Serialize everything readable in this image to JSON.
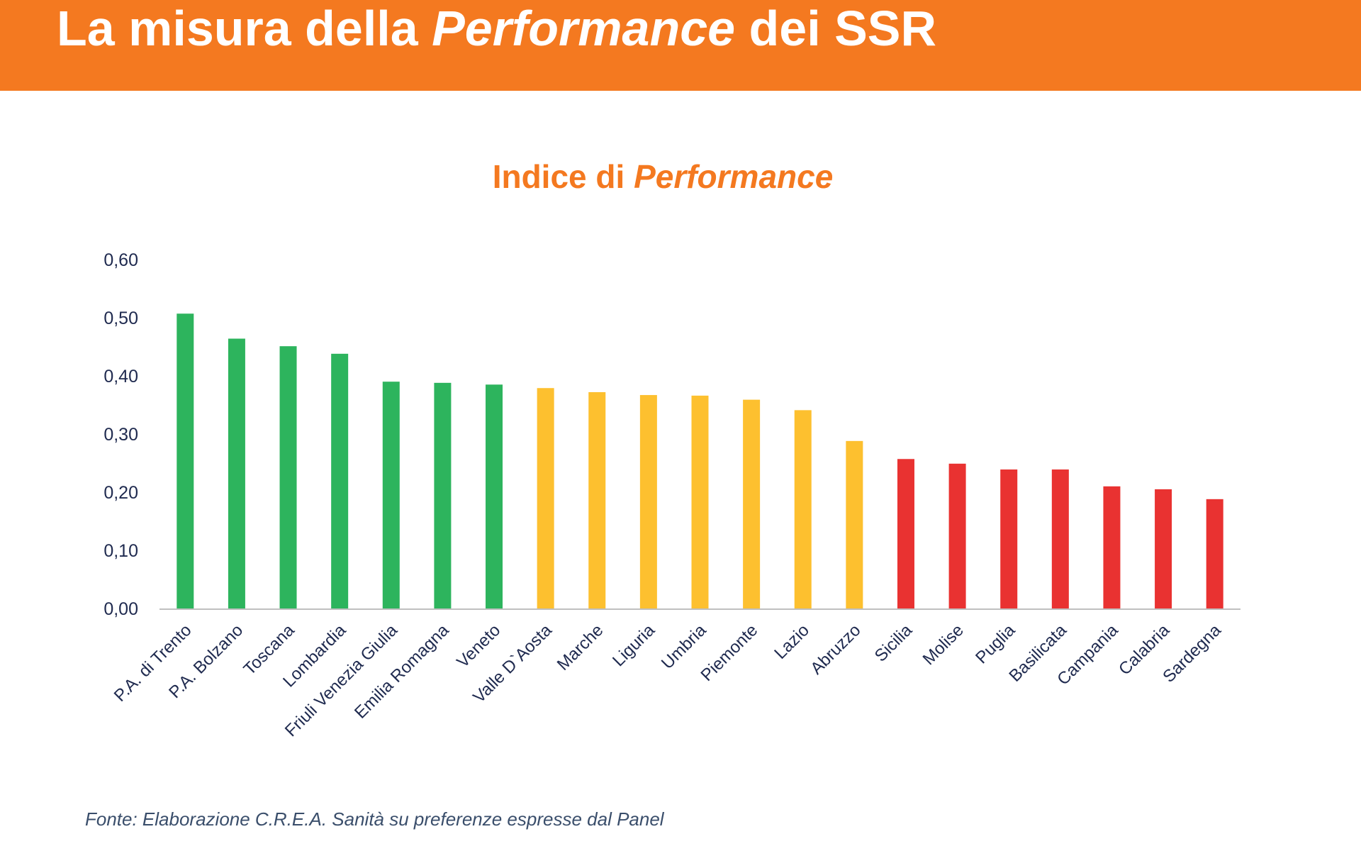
{
  "header": {
    "title_pre": "La misura della ",
    "title_em": "Performance",
    "title_post": " dei SSR"
  },
  "colors": {
    "header_bg": "#F47920",
    "title_orange": "#F47920",
    "green": "#2DB45D",
    "yellow": "#FDC02F",
    "red": "#E93231",
    "axis_text": "#1F2A4F"
  },
  "chart_data": {
    "type": "bar",
    "title_pre": "Indice di ",
    "title_em": "Performance",
    "xlabel": "",
    "ylabel": "",
    "ylim": [
      0,
      0.6
    ],
    "yticks": [
      0,
      0.1,
      0.2,
      0.3,
      0.4,
      0.5,
      0.6
    ],
    "ytick_labels": [
      "0,00",
      "0,10",
      "0,20",
      "0,30",
      "0,40",
      "0,50",
      "0,60"
    ],
    "grid": false,
    "legend": "none",
    "categories": [
      "P.A. di Trento",
      "P.A. Bolzano",
      "Toscana",
      "Lombardia",
      "Friuli Venezia Giulia",
      "Emilia Romagna",
      "Veneto",
      "Valle D`Aosta",
      "Marche",
      "Liguria",
      "Umbria",
      "Piemonte",
      "Lazio",
      "Abruzzo",
      "Sicilia",
      "Molise",
      "Puglia",
      "Basilicata",
      "Campania",
      "Calabria",
      "Sardegna"
    ],
    "values": [
      0.507,
      0.464,
      0.451,
      0.438,
      0.39,
      0.388,
      0.385,
      0.379,
      0.372,
      0.367,
      0.366,
      0.359,
      0.341,
      0.288,
      0.257,
      0.249,
      0.239,
      0.239,
      0.21,
      0.205,
      0.188
    ],
    "bar_colors": [
      "green",
      "green",
      "green",
      "green",
      "green",
      "green",
      "green",
      "yellow",
      "yellow",
      "yellow",
      "yellow",
      "yellow",
      "yellow",
      "yellow",
      "red",
      "red",
      "red",
      "red",
      "red",
      "red",
      "red"
    ]
  },
  "source": "Fonte: Elaborazione C.R.E.A. Sanità su preferenze espresse dal Panel"
}
